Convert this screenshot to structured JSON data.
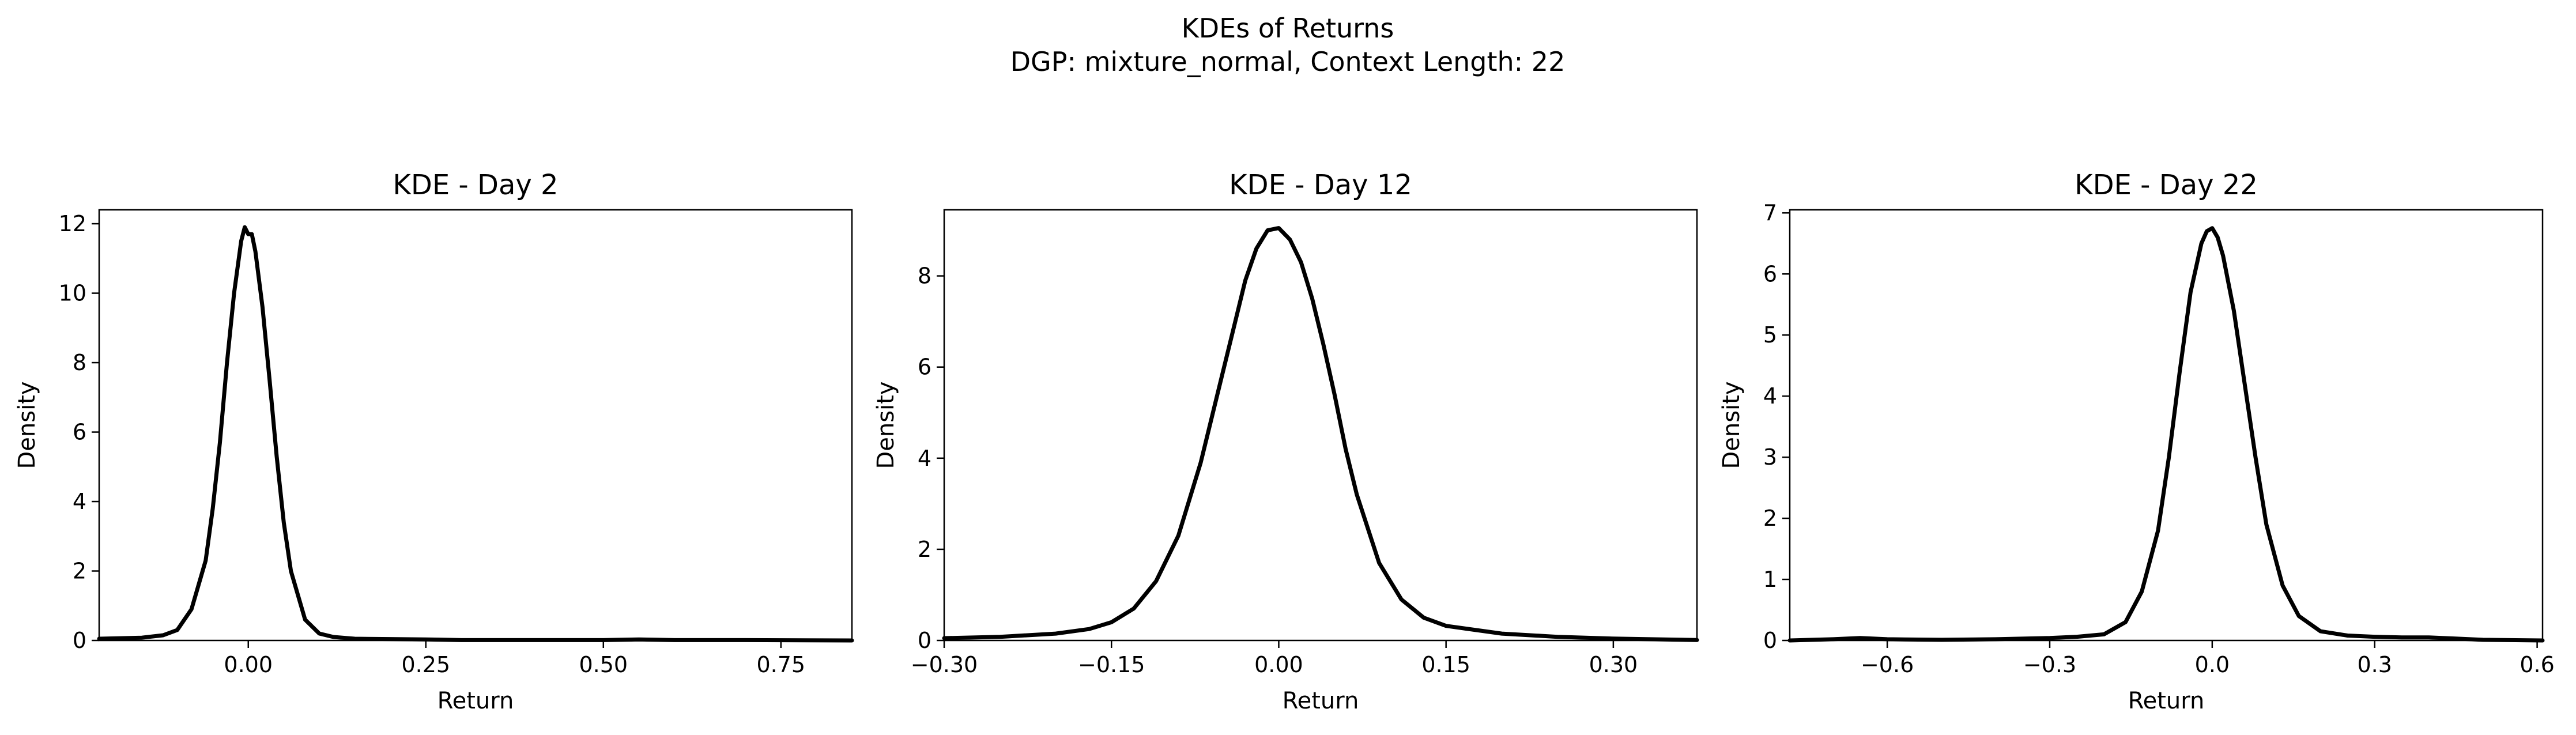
{
  "figure": {
    "title_line1": "KDEs of Returns",
    "title_line2": "DGP: mixture_normal, Context Length: 22"
  },
  "chart_data": [
    {
      "type": "line",
      "title": "KDE - Day 2",
      "xlabel": "Return",
      "ylabel": "Density",
      "xlim": [
        -0.21,
        0.85
      ],
      "ylim": [
        0,
        12.4
      ],
      "xticks": [
        0.0,
        0.25,
        0.5,
        0.75
      ],
      "xtick_labels": [
        "0.00",
        "0.25",
        "0.50",
        "0.75"
      ],
      "yticks": [
        0,
        2,
        4,
        6,
        8,
        10,
        12
      ],
      "ytick_labels": [
        "0",
        "2",
        "4",
        "6",
        "8",
        "10",
        "12"
      ],
      "grid": false,
      "line_color": "#000000",
      "series": [
        {
          "x": [
            -0.21,
            -0.15,
            -0.12,
            -0.1,
            -0.08,
            -0.06,
            -0.05,
            -0.04,
            -0.03,
            -0.02,
            -0.01,
            -0.005,
            0.0,
            0.005,
            0.01,
            0.02,
            0.03,
            0.04,
            0.05,
            0.06,
            0.08,
            0.1,
            0.12,
            0.15,
            0.2,
            0.25,
            0.3,
            0.4,
            0.5,
            0.55,
            0.6,
            0.7,
            0.85
          ],
          "y": [
            0.05,
            0.08,
            0.15,
            0.3,
            0.9,
            2.3,
            3.8,
            5.7,
            8.0,
            10.0,
            11.5,
            11.9,
            11.7,
            11.7,
            11.2,
            9.6,
            7.5,
            5.3,
            3.4,
            2.0,
            0.6,
            0.2,
            0.1,
            0.05,
            0.04,
            0.03,
            0.01,
            0.01,
            0.01,
            0.03,
            0.01,
            0.01,
            0.0
          ]
        }
      ]
    },
    {
      "type": "line",
      "title": "KDE - Day 12",
      "xlabel": "Return",
      "ylabel": "Density",
      "xlim": [
        -0.3,
        0.375
      ],
      "ylim": [
        0,
        9.45
      ],
      "xticks": [
        -0.3,
        -0.15,
        0.0,
        0.15,
        0.3
      ],
      "xtick_labels": [
        "−0.30",
        "−0.15",
        "0.00",
        "0.15",
        "0.30"
      ],
      "yticks": [
        0,
        2,
        4,
        6,
        8
      ],
      "ytick_labels": [
        "0",
        "2",
        "4",
        "6",
        "8"
      ],
      "grid": false,
      "line_color": "#000000",
      "series": [
        {
          "x": [
            -0.3,
            -0.25,
            -0.2,
            -0.17,
            -0.15,
            -0.13,
            -0.11,
            -0.09,
            -0.07,
            -0.05,
            -0.04,
            -0.03,
            -0.02,
            -0.01,
            0.0,
            0.01,
            0.02,
            0.03,
            0.04,
            0.05,
            0.06,
            0.07,
            0.09,
            0.11,
            0.13,
            0.15,
            0.2,
            0.25,
            0.3,
            0.375
          ],
          "y": [
            0.05,
            0.08,
            0.15,
            0.25,
            0.4,
            0.7,
            1.3,
            2.3,
            3.9,
            5.9,
            6.9,
            7.9,
            8.6,
            9.0,
            9.05,
            8.8,
            8.3,
            7.5,
            6.5,
            5.4,
            4.2,
            3.2,
            1.7,
            0.9,
            0.5,
            0.32,
            0.15,
            0.08,
            0.04,
            0.01
          ]
        }
      ]
    },
    {
      "type": "line",
      "title": "KDE - Day 22",
      "xlabel": "Return",
      "ylabel": "Density",
      "xlim": [
        -0.78,
        0.61
      ],
      "ylim": [
        0,
        7.05
      ],
      "xticks": [
        -0.6,
        -0.3,
        0.0,
        0.3,
        0.6
      ],
      "xtick_labels": [
        "−0.6",
        "−0.3",
        "0.0",
        "0.3",
        "0.6"
      ],
      "yticks": [
        0,
        1,
        2,
        3,
        4,
        5,
        6,
        7
      ],
      "ytick_labels": [
        "0",
        "1",
        "2",
        "3",
        "4",
        "5",
        "6",
        "7"
      ],
      "grid": false,
      "line_color": "#000000",
      "series": [
        {
          "x": [
            -0.78,
            -0.7,
            -0.65,
            -0.6,
            -0.5,
            -0.4,
            -0.3,
            -0.25,
            -0.2,
            -0.16,
            -0.13,
            -0.1,
            -0.08,
            -0.06,
            -0.04,
            -0.02,
            -0.01,
            0.0,
            0.01,
            0.02,
            0.04,
            0.06,
            0.08,
            0.1,
            0.13,
            0.16,
            0.2,
            0.25,
            0.3,
            0.35,
            0.4,
            0.45,
            0.5,
            0.61
          ],
          "y": [
            0.0,
            0.02,
            0.04,
            0.02,
            0.01,
            0.02,
            0.04,
            0.06,
            0.1,
            0.3,
            0.8,
            1.8,
            3.0,
            4.4,
            5.7,
            6.5,
            6.7,
            6.75,
            6.6,
            6.3,
            5.4,
            4.2,
            3.0,
            1.9,
            0.9,
            0.4,
            0.15,
            0.08,
            0.06,
            0.05,
            0.05,
            0.03,
            0.01,
            0.0
          ]
        }
      ]
    }
  ]
}
